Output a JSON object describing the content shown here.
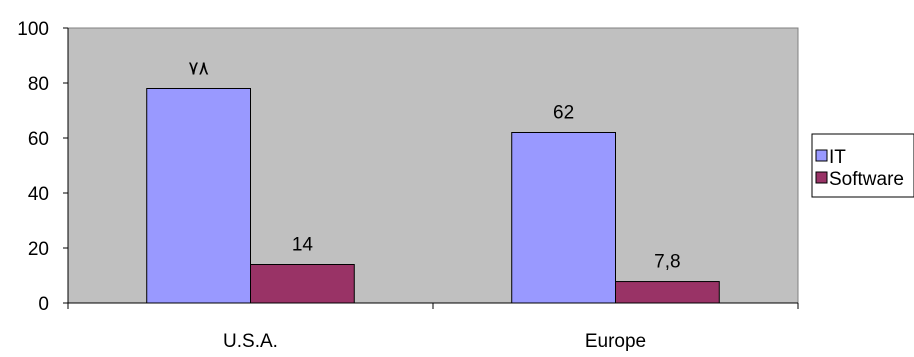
{
  "chart_data": {
    "type": "bar",
    "categories": [
      "U.S.A.",
      "Europe"
    ],
    "series": [
      {
        "name": "IT",
        "values": [
          78,
          62
        ],
        "value_labels": [
          "٧٨",
          "62"
        ],
        "color": "#9999ff"
      },
      {
        "name": "Software",
        "values": [
          14,
          7.8
        ],
        "value_labels": [
          "14",
          "7,8"
        ],
        "color": "#993366"
      }
    ],
    "title": "",
    "xlabel": "",
    "ylabel": "",
    "ylim": [
      0,
      100
    ],
    "yticks": [
      "0",
      "20",
      "40",
      "60",
      "80",
      "100"
    ],
    "grid": false,
    "legend": "right",
    "plot_background": "#c0c0c0"
  }
}
